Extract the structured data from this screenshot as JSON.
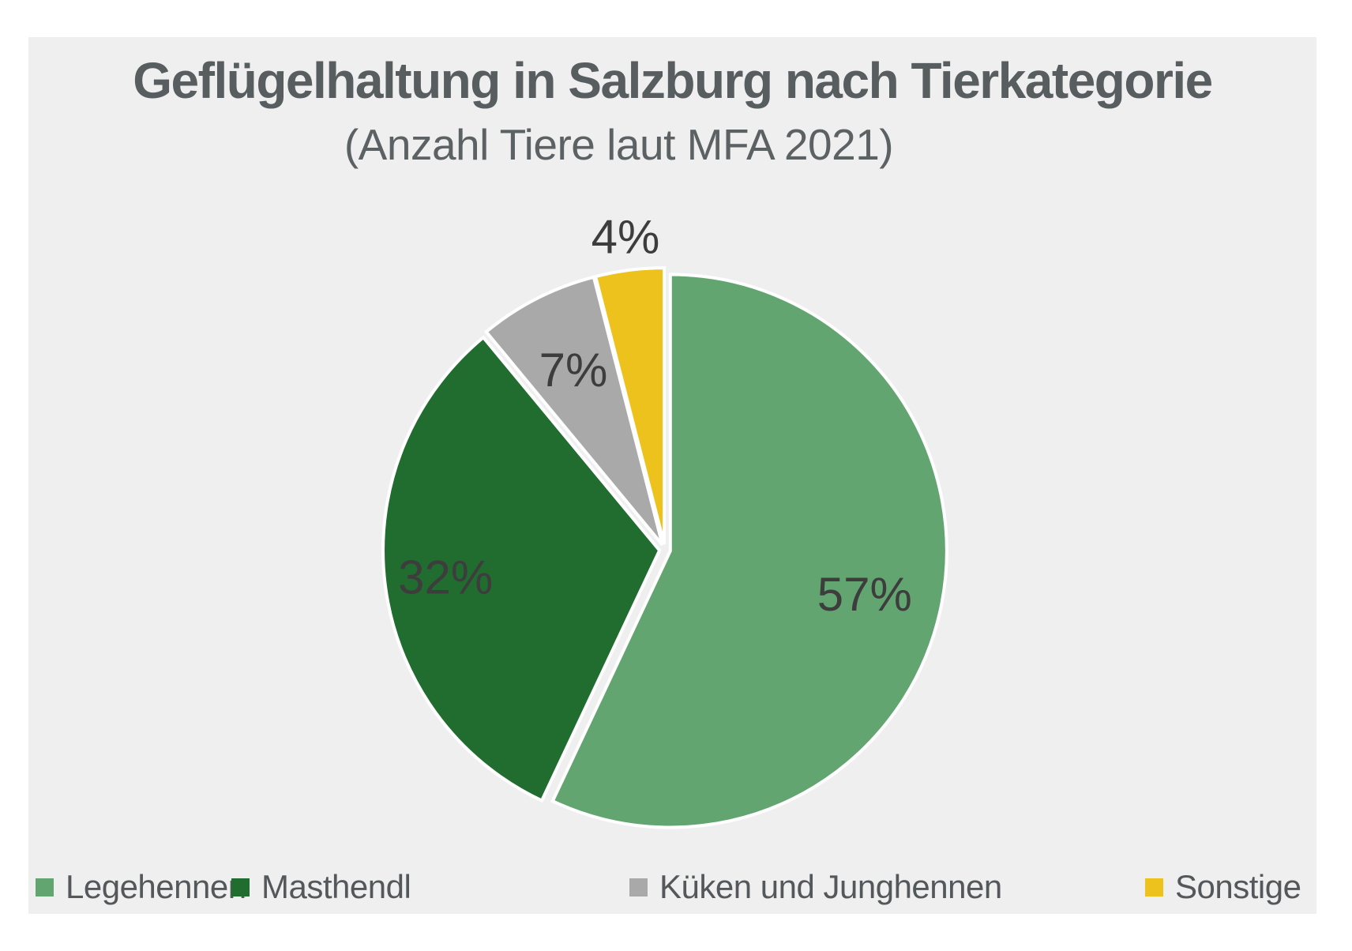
{
  "page": {
    "background": "#FFFFFF",
    "panel_background": "#EFEFEF"
  },
  "header": {
    "title": "Geflügelhaltung in Salzburg nach Tierkategorie",
    "subtitle": "(Anzahl Tiere laut MFA 2021)",
    "title_color": "#585D5F"
  },
  "chart_data": {
    "type": "pie",
    "title": "Geflügelhaltung in Salzburg nach Tierkategorie",
    "subtitle": "(Anzahl Tiere laut MFA 2021)",
    "categories": [
      "Legehennen",
      "Masthendl",
      "Küken und Junghennen",
      "Sonstige"
    ],
    "values": [
      57,
      32,
      7,
      4
    ],
    "unit": "%",
    "data_labels": [
      "57%",
      "32%",
      "7%",
      "4%"
    ],
    "colors": [
      "#62A571",
      "#216C2F",
      "#A9A9A9",
      "#EDC21D"
    ],
    "slice_gap_color": "#FFFFFF",
    "label_color": "#3D3D3D",
    "start_angle_deg": 0,
    "direction": "clockwise",
    "exploded": true,
    "legend_position": "bottom",
    "legend_text_color": "#54585A"
  }
}
